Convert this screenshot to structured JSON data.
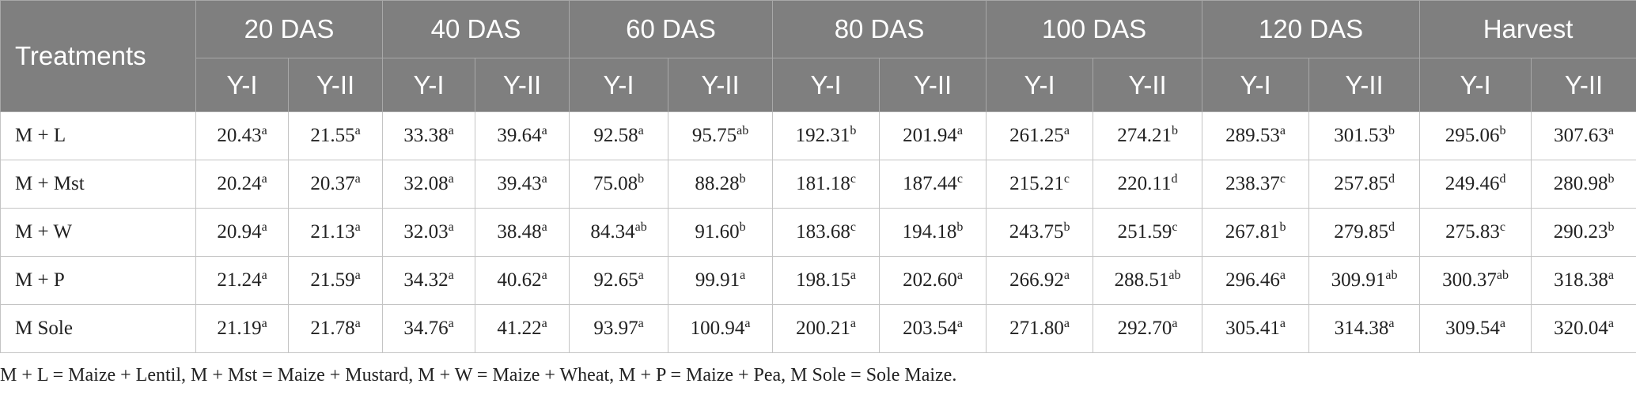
{
  "table": {
    "first_header": "Treatments",
    "groups": [
      "20 DAS",
      "40 DAS",
      "60 DAS",
      "80 DAS",
      "100 DAS",
      "120 DAS",
      "Harvest"
    ],
    "subheaders": [
      "Y-I",
      "Y-II",
      "Y-I",
      "Y-II",
      "Y-I",
      "Y-II",
      "Y-I",
      "Y-II",
      "Y-I",
      "Y-II",
      "Y-I",
      "Y-II",
      "Y-I",
      "Y-II"
    ],
    "rows": [
      {
        "treatment": "M + L",
        "cells": [
          [
            "20.43",
            "a"
          ],
          [
            "21.55",
            "a"
          ],
          [
            "33.38",
            "a"
          ],
          [
            "39.64",
            "a"
          ],
          [
            "92.58",
            "a"
          ],
          [
            "95.75",
            "ab"
          ],
          [
            "192.31",
            "b"
          ],
          [
            "201.94",
            "a"
          ],
          [
            "261.25",
            "a"
          ],
          [
            "274.21",
            "b"
          ],
          [
            "289.53",
            "a"
          ],
          [
            "301.53",
            "b"
          ],
          [
            "295.06",
            "b"
          ],
          [
            "307.63",
            "a"
          ]
        ]
      },
      {
        "treatment": "M + Mst",
        "cells": [
          [
            "20.24",
            "a"
          ],
          [
            "20.37",
            "a"
          ],
          [
            "32.08",
            "a"
          ],
          [
            "39.43",
            "a"
          ],
          [
            "75.08",
            "b"
          ],
          [
            "88.28",
            "b"
          ],
          [
            "181.18",
            "c"
          ],
          [
            "187.44",
            "c"
          ],
          [
            "215.21",
            "c"
          ],
          [
            "220.11",
            "d"
          ],
          [
            "238.37",
            "c"
          ],
          [
            "257.85",
            "d"
          ],
          [
            "249.46",
            "d"
          ],
          [
            "280.98",
            "b"
          ]
        ]
      },
      {
        "treatment": "M + W",
        "cells": [
          [
            "20.94",
            "a"
          ],
          [
            "21.13",
            "a"
          ],
          [
            "32.03",
            "a"
          ],
          [
            "38.48",
            "a"
          ],
          [
            "84.34",
            "ab"
          ],
          [
            "91.60",
            "b"
          ],
          [
            "183.68",
            "c"
          ],
          [
            "194.18",
            "b"
          ],
          [
            "243.75",
            "b"
          ],
          [
            "251.59",
            "c"
          ],
          [
            "267.81",
            "b"
          ],
          [
            "279.85",
            "d"
          ],
          [
            "275.83",
            "c"
          ],
          [
            "290.23",
            "b"
          ]
        ]
      },
      {
        "treatment": "M + P",
        "cells": [
          [
            "21.24",
            "a"
          ],
          [
            "21.59",
            "a"
          ],
          [
            "34.32",
            "a"
          ],
          [
            "40.62",
            "a"
          ],
          [
            "92.65",
            "a"
          ],
          [
            "99.91",
            "a"
          ],
          [
            "198.15",
            "a"
          ],
          [
            "202.60",
            "a"
          ],
          [
            "266.92",
            "a"
          ],
          [
            "288.51",
            "ab"
          ],
          [
            "296.46",
            "a"
          ],
          [
            "309.91",
            "ab"
          ],
          [
            "300.37",
            "ab"
          ],
          [
            "318.38",
            "a"
          ]
        ]
      },
      {
        "treatment": "M Sole",
        "cells": [
          [
            "21.19",
            "a"
          ],
          [
            "21.78",
            "a"
          ],
          [
            "34.76",
            "a"
          ],
          [
            "41.22",
            "a"
          ],
          [
            "93.97",
            "a"
          ],
          [
            "100.94",
            "a"
          ],
          [
            "200.21",
            "a"
          ],
          [
            "203.54",
            "a"
          ],
          [
            "271.80",
            "a"
          ],
          [
            "292.70",
            "a"
          ],
          [
            "305.41",
            "a"
          ],
          [
            "314.38",
            "a"
          ],
          [
            "309.54",
            "a"
          ],
          [
            "320.04",
            "a"
          ]
        ]
      }
    ]
  },
  "footnote": "M + L = Maize + Lentil, M + Mst = Maize + Mustard, M + W = Maize + Wheat, M + P = Maize + Pea, M Sole = Sole Maize."
}
